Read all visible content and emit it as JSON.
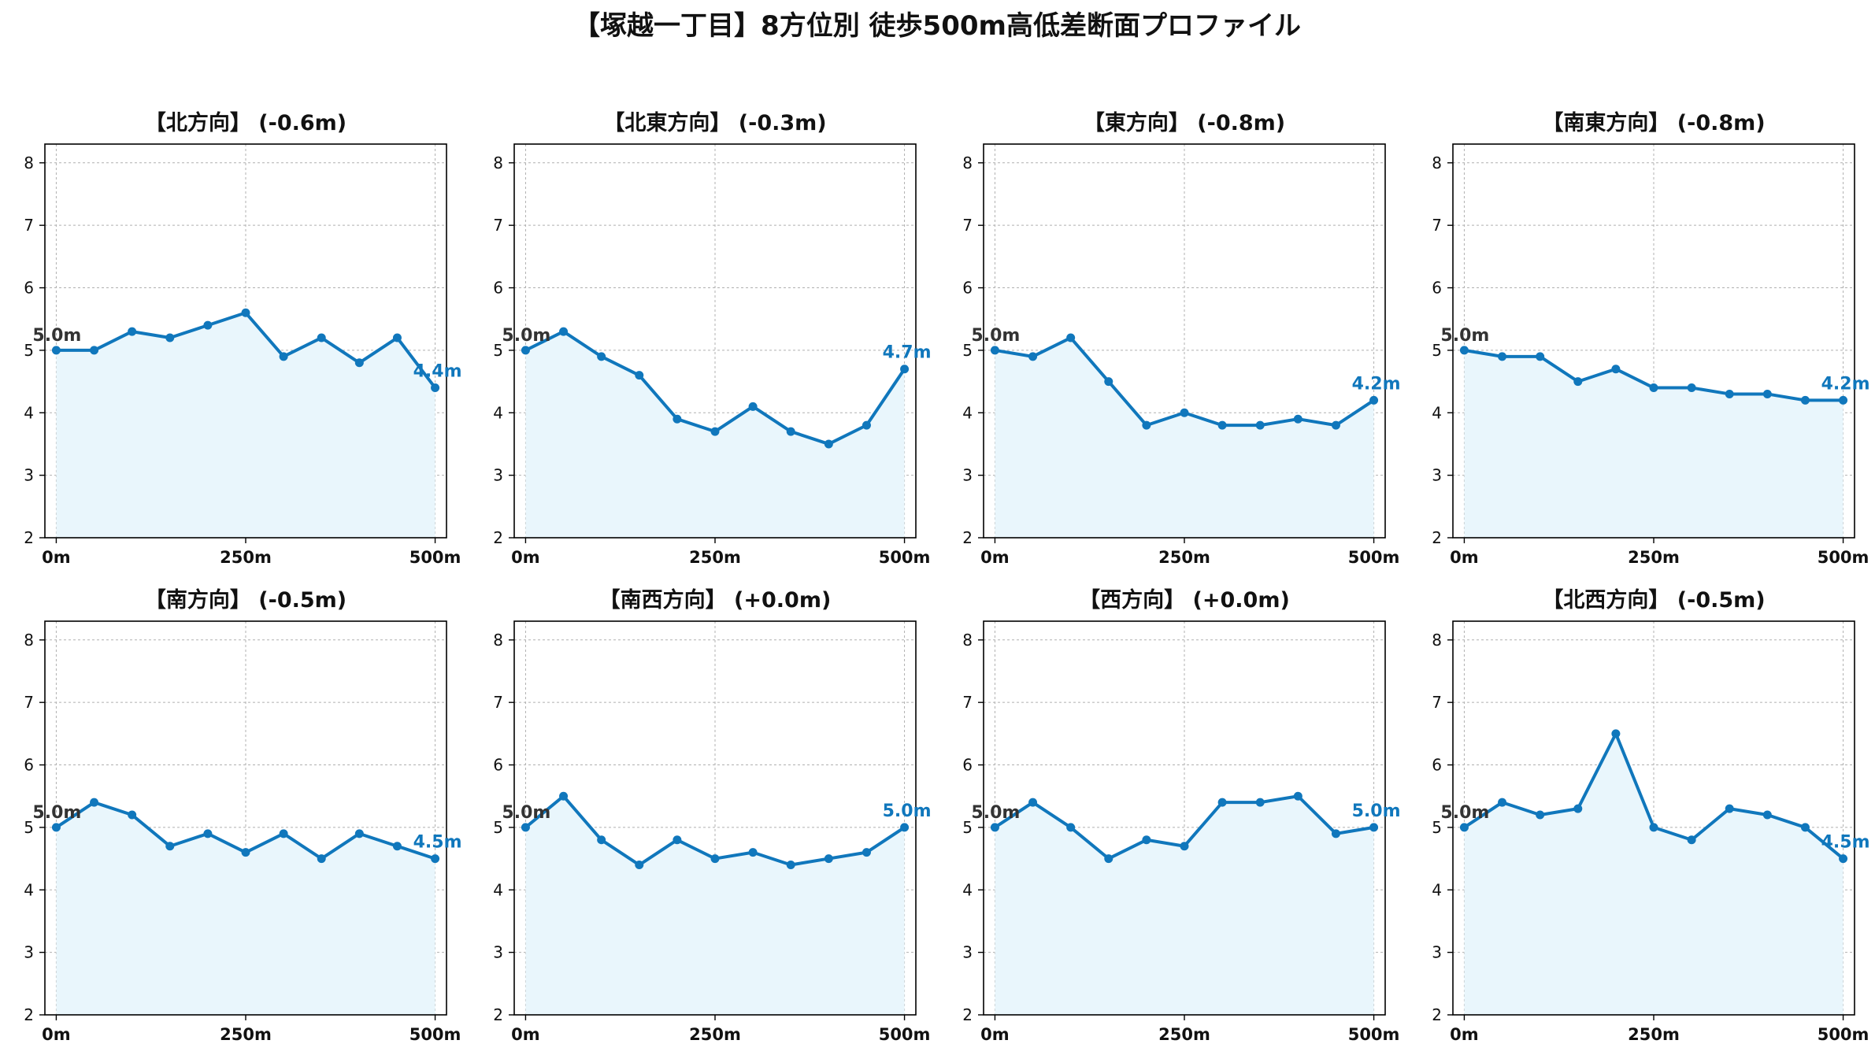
{
  "title": "【塚越一丁目】8方位別 徒歩500m高低差断面プロファイル",
  "colors": {
    "line": "#1077bc",
    "fill": "#e9f6fc",
    "start_label": "#333333",
    "end_label": "#1077bc",
    "grid": "#b0b0b0"
  },
  "chart_data": [
    {
      "type": "area",
      "title": "【北方向】 (-0.6m)",
      "x": [
        0,
        50,
        100,
        150,
        200,
        250,
        300,
        350,
        400,
        450,
        500
      ],
      "y": [
        5.0,
        5.0,
        5.3,
        5.2,
        5.4,
        5.6,
        4.9,
        5.2,
        4.8,
        5.2,
        4.4
      ],
      "start_label": "5.0m",
      "end_label": "4.4m",
      "xlim": [
        -15,
        515
      ],
      "ylim": [
        2.0,
        8.3
      ],
      "yticks": [
        "2",
        "3",
        "4",
        "5",
        "6",
        "7",
        "8"
      ],
      "xticks": [
        "0m",
        "250m",
        "500m"
      ],
      "grid": true
    },
    {
      "type": "area",
      "title": "【北東方向】 (-0.3m)",
      "x": [
        0,
        50,
        100,
        150,
        200,
        250,
        300,
        350,
        400,
        450,
        500
      ],
      "y": [
        5.0,
        5.3,
        4.9,
        4.6,
        3.9,
        3.7,
        4.1,
        3.7,
        3.5,
        3.8,
        4.7
      ],
      "start_label": "5.0m",
      "end_label": "4.7m",
      "xlim": [
        -15,
        515
      ],
      "ylim": [
        2.0,
        8.3
      ],
      "yticks": [
        "2",
        "3",
        "4",
        "5",
        "6",
        "7",
        "8"
      ],
      "xticks": [
        "0m",
        "250m",
        "500m"
      ],
      "grid": true
    },
    {
      "type": "area",
      "title": "【東方向】 (-0.8m)",
      "x": [
        0,
        50,
        100,
        150,
        200,
        250,
        300,
        350,
        400,
        450,
        500
      ],
      "y": [
        5.0,
        4.9,
        5.2,
        4.5,
        3.8,
        4.0,
        3.8,
        3.8,
        3.9,
        3.8,
        4.2
      ],
      "start_label": "5.0m",
      "end_label": "4.2m",
      "xlim": [
        -15,
        515
      ],
      "ylim": [
        2.0,
        8.3
      ],
      "yticks": [
        "2",
        "3",
        "4",
        "5",
        "6",
        "7",
        "8"
      ],
      "xticks": [
        "0m",
        "250m",
        "500m"
      ],
      "grid": true
    },
    {
      "type": "area",
      "title": "【南東方向】 (-0.8m)",
      "x": [
        0,
        50,
        100,
        150,
        200,
        250,
        300,
        350,
        400,
        450,
        500
      ],
      "y": [
        5.0,
        4.9,
        4.9,
        4.5,
        4.7,
        4.4,
        4.4,
        4.3,
        4.3,
        4.2,
        4.2
      ],
      "start_label": "5.0m",
      "end_label": "4.2m",
      "xlim": [
        -15,
        515
      ],
      "ylim": [
        2.0,
        8.3
      ],
      "yticks": [
        "2",
        "3",
        "4",
        "5",
        "6",
        "7",
        "8"
      ],
      "xticks": [
        "0m",
        "250m",
        "500m"
      ],
      "grid": true
    },
    {
      "type": "area",
      "title": "【南方向】 (-0.5m)",
      "x": [
        0,
        50,
        100,
        150,
        200,
        250,
        300,
        350,
        400,
        450,
        500
      ],
      "y": [
        5.0,
        5.4,
        5.2,
        4.7,
        4.9,
        4.6,
        4.9,
        4.5,
        4.9,
        4.7,
        4.5
      ],
      "start_label": "5.0m",
      "end_label": "4.5m",
      "xlim": [
        -15,
        515
      ],
      "ylim": [
        2.0,
        8.3
      ],
      "yticks": [
        "2",
        "3",
        "4",
        "5",
        "6",
        "7",
        "8"
      ],
      "xticks": [
        "0m",
        "250m",
        "500m"
      ],
      "grid": true
    },
    {
      "type": "area",
      "title": "【南西方向】 (+0.0m)",
      "x": [
        0,
        50,
        100,
        150,
        200,
        250,
        300,
        350,
        400,
        450,
        500
      ],
      "y": [
        5.0,
        5.5,
        4.8,
        4.4,
        4.8,
        4.5,
        4.6,
        4.4,
        4.5,
        4.6,
        5.0
      ],
      "start_label": "5.0m",
      "end_label": "5.0m",
      "xlim": [
        -15,
        515
      ],
      "ylim": [
        2.0,
        8.3
      ],
      "yticks": [
        "2",
        "3",
        "4",
        "5",
        "6",
        "7",
        "8"
      ],
      "xticks": [
        "0m",
        "250m",
        "500m"
      ],
      "grid": true
    },
    {
      "type": "area",
      "title": "【西方向】 (+0.0m)",
      "x": [
        0,
        50,
        100,
        150,
        200,
        250,
        300,
        350,
        400,
        450,
        500
      ],
      "y": [
        5.0,
        5.4,
        5.0,
        4.5,
        4.8,
        4.7,
        5.4,
        5.4,
        5.5,
        4.9,
        5.0
      ],
      "start_label": "5.0m",
      "end_label": "5.0m",
      "xlim": [
        -15,
        515
      ],
      "ylim": [
        2.0,
        8.3
      ],
      "yticks": [
        "2",
        "3",
        "4",
        "5",
        "6",
        "7",
        "8"
      ],
      "xticks": [
        "0m",
        "250m",
        "500m"
      ],
      "grid": true
    },
    {
      "type": "area",
      "title": "【北西方向】 (-0.5m)",
      "x": [
        0,
        50,
        100,
        150,
        200,
        250,
        300,
        350,
        400,
        450,
        500
      ],
      "y": [
        5.0,
        5.4,
        5.2,
        5.3,
        6.5,
        5.0,
        4.8,
        5.3,
        5.2,
        5.0,
        4.5
      ],
      "start_label": "5.0m",
      "end_label": "4.5m",
      "xlim": [
        -15,
        515
      ],
      "ylim": [
        2.0,
        8.3
      ],
      "yticks": [
        "2",
        "3",
        "4",
        "5",
        "6",
        "7",
        "8"
      ],
      "xticks": [
        "0m",
        "250m",
        "500m"
      ],
      "grid": true
    }
  ]
}
